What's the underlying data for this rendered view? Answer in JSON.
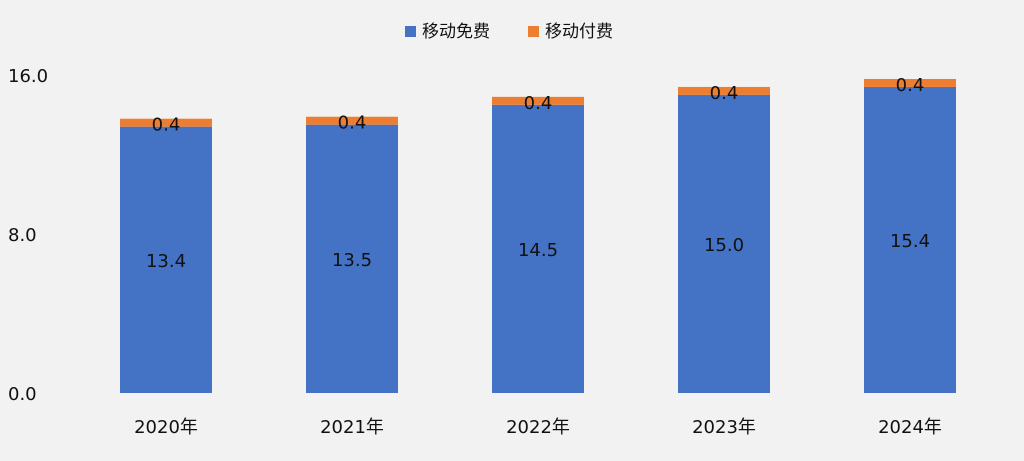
{
  "chart_data": {
    "type": "bar",
    "stacked": true,
    "categories": [
      "2020年",
      "2021年",
      "2022年",
      "2023年",
      "2024年"
    ],
    "series": [
      {
        "name": "移动免费",
        "color": "#4472c4",
        "values": [
          13.4,
          13.5,
          14.5,
          15.0,
          15.4
        ]
      },
      {
        "name": "移动付费",
        "color": "#ed7d31",
        "values": [
          0.4,
          0.4,
          0.4,
          0.4,
          0.4
        ]
      }
    ],
    "data_labels": [
      [
        "13.4",
        "13.5",
        "14.5",
        "15.0",
        "15.4"
      ],
      [
        "0.4",
        "0.4",
        "0.4",
        "0.4",
        "0.4"
      ]
    ],
    "y_ticks": [
      "0.0",
      "8.0",
      "16.0"
    ],
    "y_tick_values": [
      0,
      8,
      16
    ],
    "ylim": [
      0,
      16
    ],
    "grid": false,
    "legend_position": "top-center",
    "background": "#f2f2f2"
  }
}
